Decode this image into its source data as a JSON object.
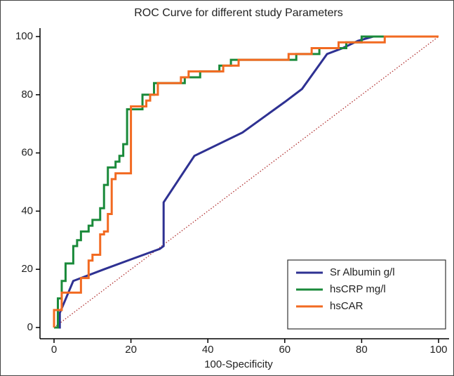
{
  "chart_data": {
    "type": "line",
    "title": "ROC Curve for different study Parameters",
    "x_label": "100-Specificity",
    "xlim": [
      0,
      100
    ],
    "ylim": [
      0,
      100
    ],
    "xticks": [
      0,
      20,
      40,
      60,
      80,
      100
    ],
    "yticks": [
      0,
      20,
      40,
      60,
      80,
      100
    ],
    "grid": false,
    "legend_position": "lower right",
    "reference_line": {
      "x": [
        0,
        100
      ],
      "values": [
        0,
        100
      ],
      "color": "#b03030",
      "style": "dotted"
    },
    "series": [
      {
        "name": "Sr Albumin g/l",
        "color": "#2e3192",
        "x": [
          0,
          1.5,
          1.5,
          5,
          13,
          20.6,
          27.5,
          28.5,
          28.5,
          36.5,
          49,
          60,
          64.5,
          71,
          75,
          79,
          83,
          100
        ],
        "values": [
          0,
          0,
          5,
          16,
          20,
          23.7,
          27,
          28,
          43,
          59,
          67,
          77.5,
          82,
          94,
          96,
          98.5,
          100,
          100
        ]
      },
      {
        "name": "hsCRP mg/l",
        "color": "#1a8a3a",
        "x": [
          0,
          1,
          1,
          2,
          2,
          3,
          3,
          5,
          5,
          6,
          6,
          7,
          7,
          9,
          9,
          10,
          10,
          12,
          12,
          13,
          13,
          14,
          14,
          16,
          16,
          17,
          17,
          18,
          18,
          19,
          19,
          23,
          23,
          26,
          26,
          34,
          34,
          38,
          38,
          43,
          43,
          46,
          46,
          63,
          63,
          69,
          69,
          76,
          76,
          80,
          80,
          100
        ],
        "values": [
          0,
          0,
          10,
          10,
          16,
          16,
          22,
          22,
          28,
          28,
          30,
          30,
          33,
          33,
          35,
          35,
          37,
          37,
          41,
          41,
          49,
          49,
          55,
          55,
          57,
          57,
          59,
          59,
          63,
          63,
          75,
          75,
          80,
          80,
          84,
          84,
          86,
          86,
          88,
          88,
          90,
          90,
          92,
          92,
          94,
          94,
          96,
          96,
          98,
          98,
          100,
          100
        ]
      },
      {
        "name": "hsCAR",
        "color": "#f26a21",
        "x": [
          0,
          0,
          2,
          2,
          7,
          7,
          9,
          9,
          10,
          10,
          12,
          12,
          13,
          13,
          14,
          14,
          15,
          15,
          16,
          16,
          20,
          20,
          24,
          24,
          25,
          25,
          27,
          27,
          33,
          33,
          35,
          35,
          44,
          44,
          48,
          48,
          61,
          61,
          67,
          67,
          74,
          74,
          86,
          86,
          100
        ],
        "values": [
          0,
          6,
          6,
          12,
          12,
          17,
          17,
          23,
          23,
          25,
          25,
          32,
          32,
          33,
          33,
          39,
          39,
          51,
          51,
          53,
          53,
          76,
          76,
          78,
          78,
          80,
          80,
          84,
          84,
          86,
          86,
          88,
          88,
          90,
          90,
          92,
          92,
          94,
          94,
          96,
          96,
          98,
          98,
          100,
          100
        ]
      }
    ]
  }
}
